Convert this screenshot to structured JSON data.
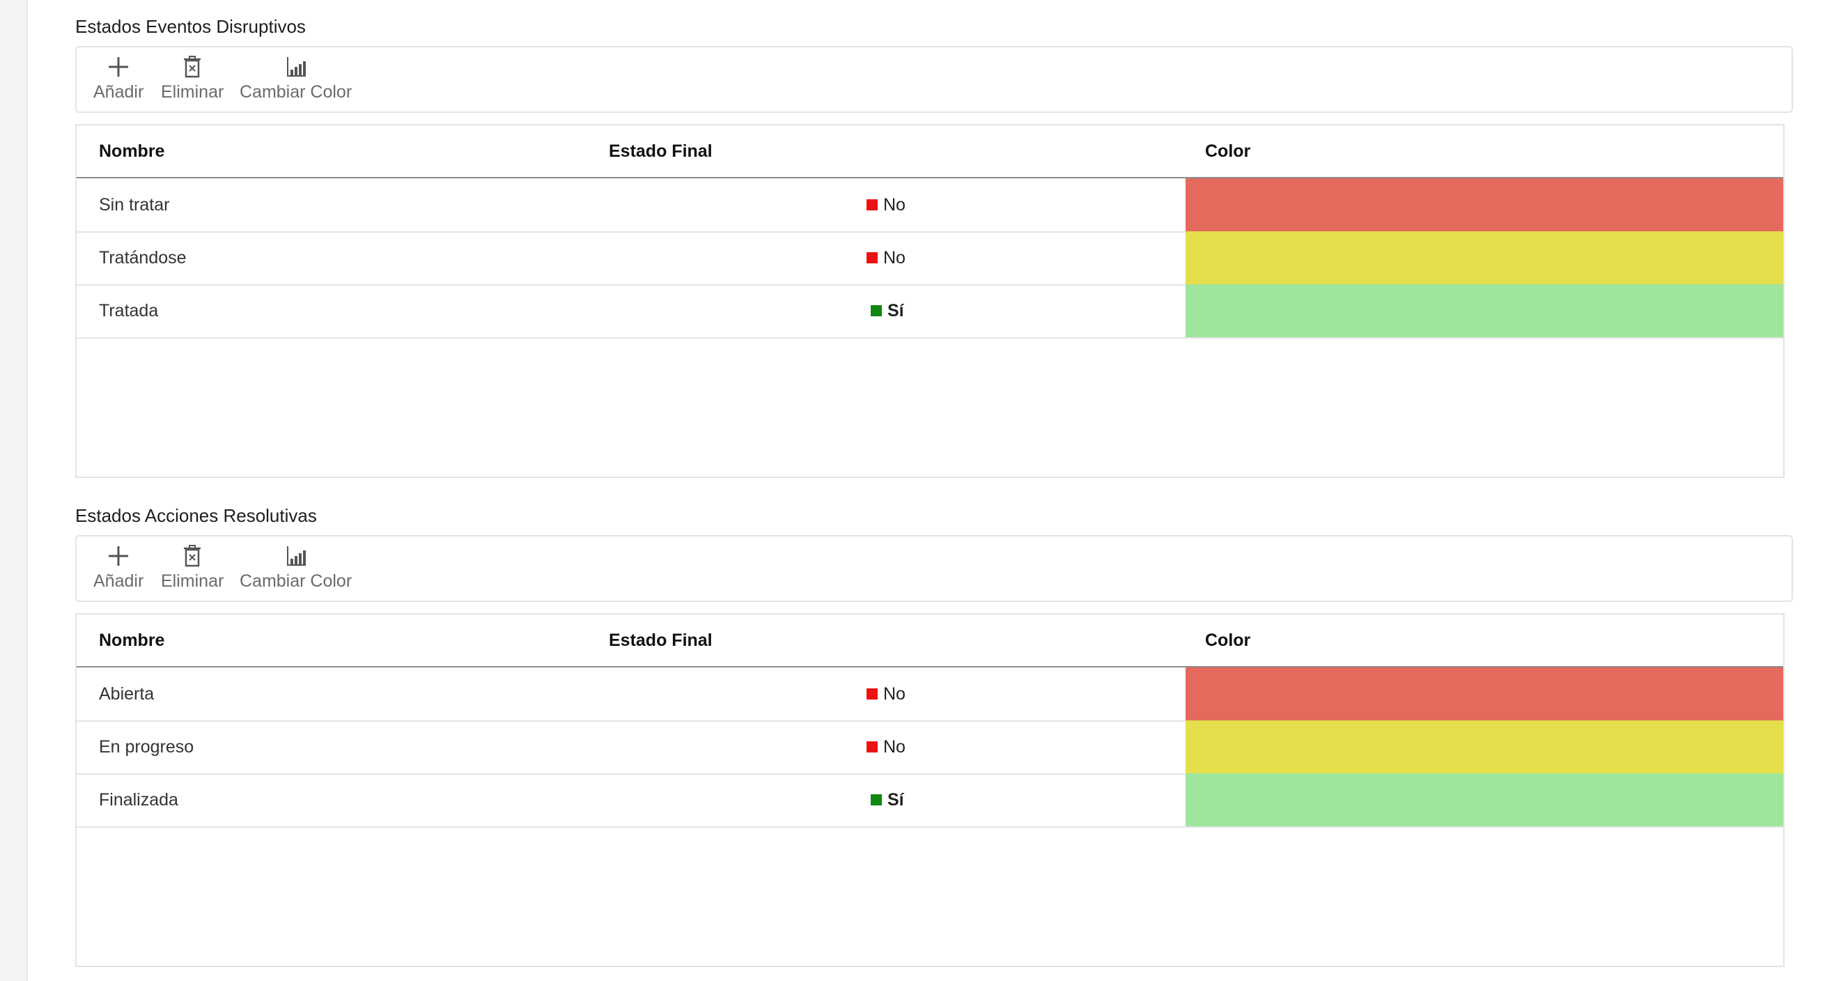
{
  "toolbar_labels": {
    "add": "Añadir",
    "delete": "Eliminar",
    "change_color": "Cambiar Color"
  },
  "columns": {
    "name": "Nombre",
    "final": "Estado Final",
    "color": "Color"
  },
  "colors": {
    "no_marker": "#ee1111",
    "yes_marker": "#118811",
    "red": "#e36a5c",
    "yellow": "#e4df4a",
    "green": "#9fe59c"
  },
  "section1": {
    "title": "Estados Eventos Disruptivos",
    "rows": [
      {
        "name": "Sin tratar",
        "final": "No",
        "color": "#e36a5c"
      },
      {
        "name": "Tratándose",
        "final": "No",
        "color": "#e4df4a"
      },
      {
        "name": "Tratada",
        "final": "Sí",
        "color": "#9fe59c"
      }
    ]
  },
  "section2": {
    "title": "Estados Acciones Resolutivas",
    "rows": [
      {
        "name": "Abierta",
        "final": "No",
        "color": "#e36a5c"
      },
      {
        "name": "En progreso",
        "final": "No",
        "color": "#e4df4a"
      },
      {
        "name": "Finalizada",
        "final": "Sí",
        "color": "#9fe59c"
      }
    ]
  }
}
